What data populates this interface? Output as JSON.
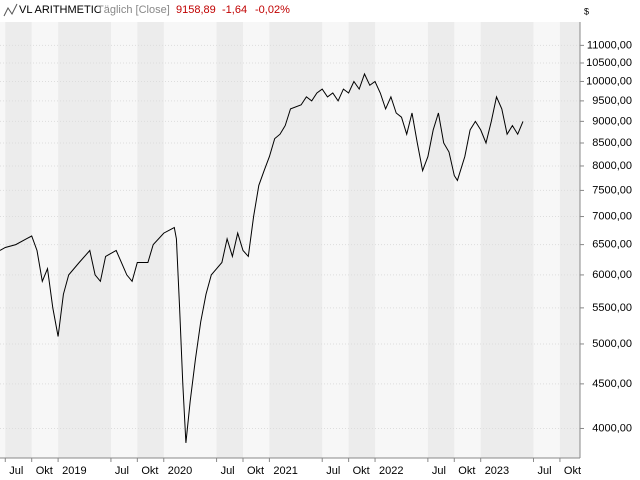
{
  "chart_data": {
    "type": "line",
    "title": "VL ARITHMETIC",
    "subtitle": "Täglich [Close]",
    "quote": {
      "last": "9158,89",
      "change": "-1,64",
      "change_pct": "-0,02%"
    },
    "y_unit": "$",
    "log_y": true,
    "grid": true,
    "color": "#000000",
    "xlim": [
      2018.45,
      2023.94
    ],
    "xticks": [
      {
        "value": 2018.5,
        "label": "Jul"
      },
      {
        "value": 2018.75,
        "label": "Okt"
      },
      {
        "value": 2019,
        "label": "2019"
      },
      {
        "value": 2019.5,
        "label": "Jul"
      },
      {
        "value": 2019.75,
        "label": "Okt"
      },
      {
        "value": 2020,
        "label": "2020"
      },
      {
        "value": 2020.5,
        "label": "Jul"
      },
      {
        "value": 2020.75,
        "label": "Okt"
      },
      {
        "value": 2021,
        "label": "2021"
      },
      {
        "value": 2021.5,
        "label": "Jul"
      },
      {
        "value": 2021.75,
        "label": "Okt"
      },
      {
        "value": 2022,
        "label": "2022"
      },
      {
        "value": 2022.5,
        "label": "Jul"
      },
      {
        "value": 2022.75,
        "label": "Okt"
      },
      {
        "value": 2023,
        "label": "2023"
      },
      {
        "value": 2023.5,
        "label": "Jul"
      },
      {
        "value": 2023.75,
        "label": "Okt"
      }
    ],
    "ylim": [
      3700,
      11700
    ],
    "yticks": [
      {
        "value": 4000,
        "label": "4000,00"
      },
      {
        "value": 4500,
        "label": "4500,00"
      },
      {
        "value": 5000,
        "label": "5000,00"
      },
      {
        "value": 5500,
        "label": "5500,00"
      },
      {
        "value": 6000,
        "label": "6000,00"
      },
      {
        "value": 6500,
        "label": "6500,00"
      },
      {
        "value": 7000,
        "label": "7000,00"
      },
      {
        "value": 7500,
        "label": "7500,00"
      },
      {
        "value": 8000,
        "label": "8000,00"
      },
      {
        "value": 8500,
        "label": "8500,00"
      },
      {
        "value": 9000,
        "label": "9000,00"
      },
      {
        "value": 9500,
        "label": "9500,00"
      },
      {
        "value": 10000,
        "label": "10000,00"
      },
      {
        "value": 10500,
        "label": "10500,00"
      },
      {
        "value": 11000,
        "label": "11000,00"
      }
    ],
    "x": [
      2018.45,
      2018.5,
      2018.6,
      2018.7,
      2018.75,
      2018.8,
      2018.85,
      2018.9,
      2018.95,
      2019.0,
      2019.05,
      2019.1,
      2019.2,
      2019.3,
      2019.35,
      2019.4,
      2019.45,
      2019.55,
      2019.65,
      2019.7,
      2019.75,
      2019.85,
      2019.9,
      2020.0,
      2020.1,
      2020.12,
      2020.15,
      2020.18,
      2020.21,
      2020.25,
      2020.3,
      2020.35,
      2020.4,
      2020.45,
      2020.5,
      2020.55,
      2020.6,
      2020.65,
      2020.7,
      2020.75,
      2020.8,
      2020.85,
      2020.9,
      2020.95,
      2021.0,
      2021.05,
      2021.1,
      2021.15,
      2021.2,
      2021.3,
      2021.35,
      2021.4,
      2021.45,
      2021.5,
      2021.55,
      2021.6,
      2021.65,
      2021.7,
      2021.75,
      2021.8,
      2021.85,
      2021.9,
      2021.95,
      2022.0,
      2022.05,
      2022.1,
      2022.15,
      2022.2,
      2022.25,
      2022.3,
      2022.35,
      2022.4,
      2022.45,
      2022.5,
      2022.55,
      2022.6,
      2022.65,
      2022.7,
      2022.75,
      2022.78,
      2022.85,
      2022.9,
      2022.95,
      2023.0,
      2023.05,
      2023.1,
      2023.15,
      2023.2,
      2023.25,
      2023.3,
      2023.35,
      2023.4
    ],
    "values": [
      6400,
      6450,
      6500,
      6600,
      6650,
      6400,
      5900,
      6100,
      5500,
      5100,
      5700,
      6000,
      6200,
      6400,
      6000,
      5900,
      6300,
      6400,
      6000,
      5900,
      6200,
      6200,
      6500,
      6700,
      6800,
      6600,
      5500,
      4500,
      3850,
      4300,
      4800,
      5300,
      5700,
      6000,
      6100,
      6200,
      6600,
      6300,
      6700,
      6400,
      6300,
      7000,
      7600,
      7900,
      8200,
      8600,
      8700,
      8900,
      9300,
      9400,
      9600,
      9500,
      9700,
      9800,
      9600,
      9700,
      9500,
      9800,
      9700,
      10000,
      9800,
      10200,
      9900,
      10000,
      9700,
      9300,
      9600,
      9200,
      9100,
      8700,
      9200,
      8500,
      7900,
      8200,
      8800,
      9200,
      8500,
      8300,
      7800,
      7700,
      8200,
      8800,
      9000,
      8800,
      8500,
      9000,
      9600,
      9300,
      8700,
      8900,
      8700,
      9000
    ]
  }
}
